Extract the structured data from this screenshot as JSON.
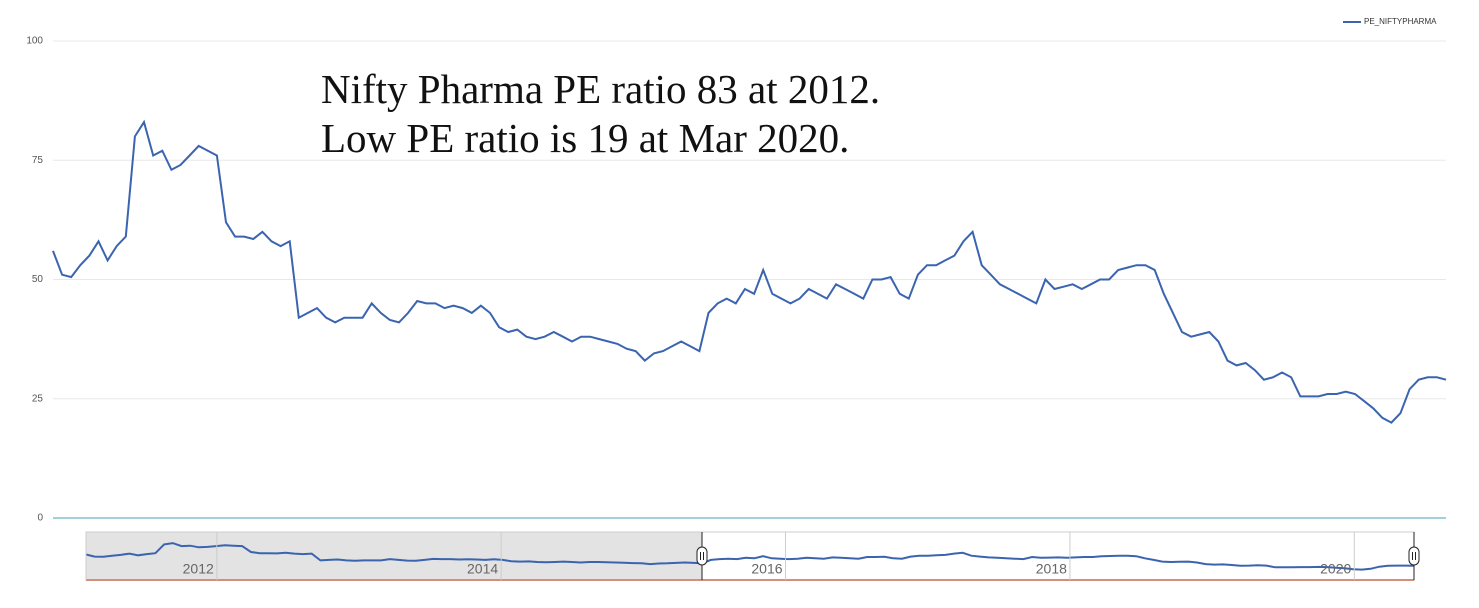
{
  "chart_data": {
    "type": "line",
    "annotations": [
      "Nifty Pharma PE ratio 83 at 2012.",
      "Low PE ratio is 19 at Mar 2020."
    ],
    "series": [
      {
        "name": "PE_NIFTYPHARMA",
        "color": "#3b64b0",
        "values": [
          56,
          51,
          50.5,
          53,
          55,
          58,
          54,
          57,
          59,
          80,
          83,
          76,
          77,
          73,
          74,
          76,
          78,
          77,
          76,
          62,
          59,
          59,
          58.5,
          60,
          58,
          57,
          58,
          42,
          43,
          44,
          42,
          41,
          42,
          42,
          42,
          45,
          43,
          41.5,
          41,
          43,
          45.5,
          45,
          45,
          44,
          44.5,
          44,
          43,
          44.5,
          43,
          40,
          39,
          39.5,
          38,
          37.5,
          38,
          39,
          38,
          37,
          38,
          38,
          37.5,
          37,
          36.5,
          35.5,
          35,
          33,
          34.5,
          35,
          36,
          37,
          36,
          35,
          43,
          45,
          46,
          45,
          48,
          47,
          52,
          47,
          46,
          45,
          46,
          48,
          47,
          46,
          49,
          48,
          47,
          46,
          50,
          50,
          50.5,
          47,
          46,
          51,
          53,
          53,
          54,
          55,
          58,
          60,
          53,
          51,
          49,
          48,
          47,
          46,
          45,
          50,
          48,
          48.5,
          49,
          48,
          49,
          50,
          50,
          52,
          52.5,
          53,
          53,
          52,
          47,
          43,
          39,
          38,
          38.5,
          39,
          37,
          33,
          32,
          32.5,
          31,
          29,
          29.5,
          30.5,
          29.5,
          25.5,
          25.5,
          25.5,
          26,
          26,
          26.5,
          26,
          24.5,
          23,
          21,
          20,
          22,
          27,
          29,
          29.5,
          29.5,
          29
        ]
      }
    ],
    "ylim": [
      0,
      100
    ],
    "yticks": [
      0,
      25,
      50,
      75,
      100
    ],
    "grid": true,
    "legend": "top-right",
    "navigator": {
      "xlim": [
        2011.08,
        2020.42
      ],
      "xticks": [
        2012,
        2014,
        2016,
        2018,
        2020
      ]
    }
  }
}
